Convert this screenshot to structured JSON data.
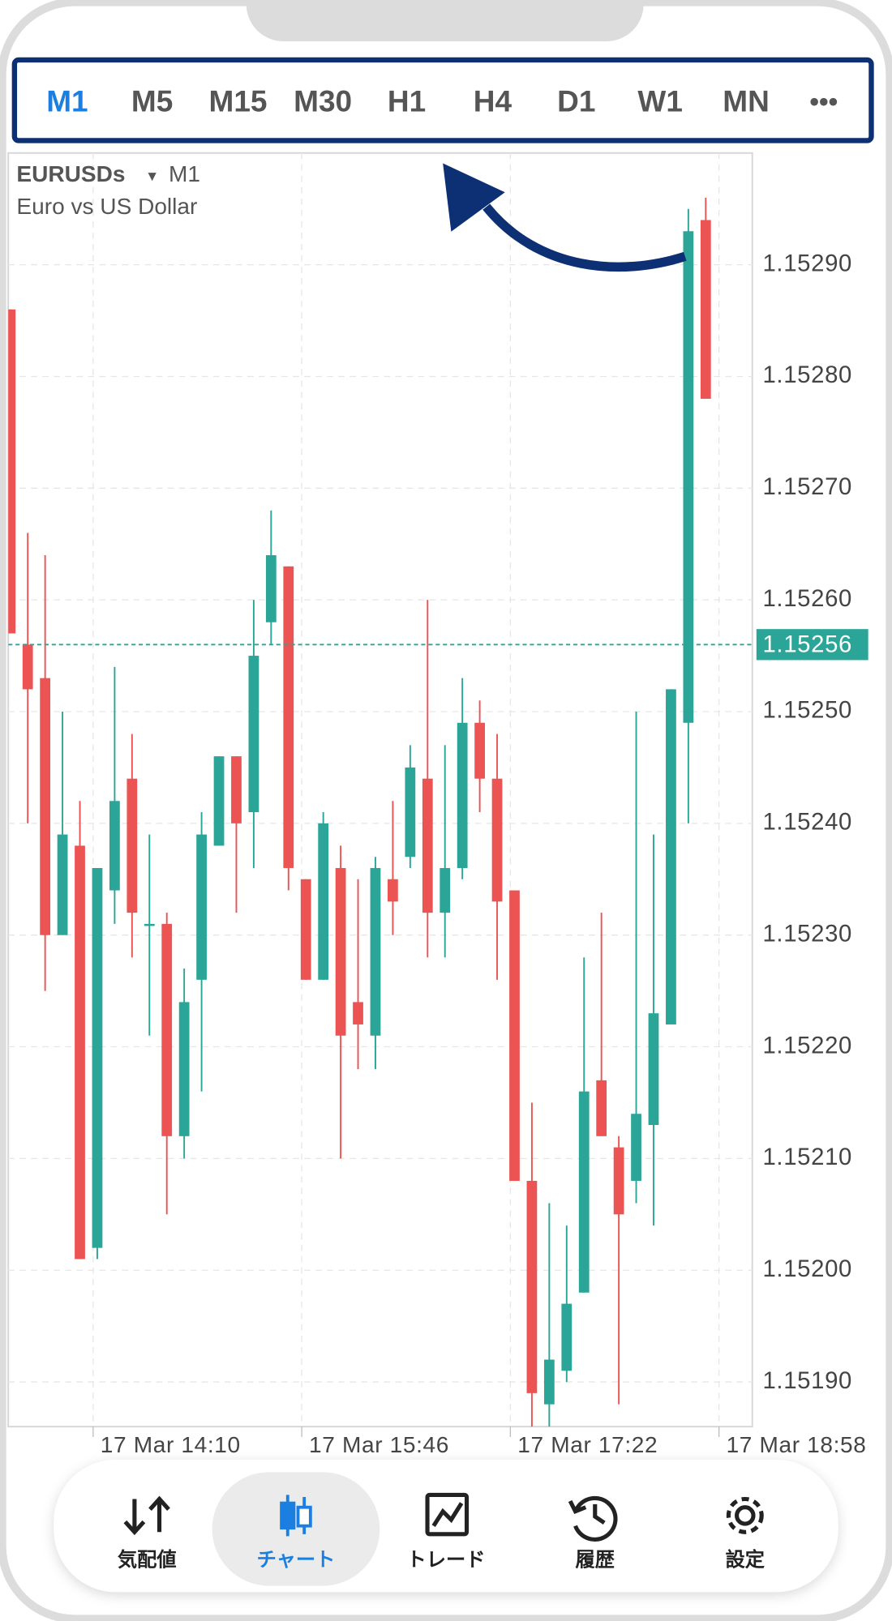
{
  "timeframes": [
    "M1",
    "M5",
    "M15",
    "M30",
    "H1",
    "H4",
    "D1",
    "W1",
    "MN"
  ],
  "more": "•••",
  "symbol": "EURUSDs",
  "dropdown": "▾",
  "timeframe": "M1",
  "description": "Euro vs US Dollar",
  "nav": [
    "気配値",
    "チャート",
    "トレード",
    "履歴",
    "設定"
  ],
  "chart_data": {
    "type": "candlestick",
    "open": [
      1.15286,
      1.15256,
      1.15253,
      1.1523,
      1.15238,
      1.15202,
      1.15234,
      1.15244,
      1.15231,
      1.15231,
      1.15212,
      1.15226,
      1.15238,
      1.15246,
      1.15241,
      1.15258,
      1.15263,
      1.15235,
      1.15226,
      1.15236,
      1.15224,
      1.15221,
      1.15235,
      1.15237,
      1.15244,
      1.15232,
      1.15236,
      1.15249,
      1.15244,
      1.15234,
      1.15208,
      1.15188,
      1.15191,
      1.15198,
      1.15217,
      1.15211,
      1.15208,
      1.15213,
      1.15222,
      1.15249,
      1.15294
    ],
    "high": [
      1.15286,
      1.15266,
      1.15264,
      1.1525,
      1.15242,
      1.15236,
      1.15254,
      1.15248,
      1.15239,
      1.15232,
      1.15227,
      1.15241,
      1.15246,
      1.15246,
      1.1526,
      1.15268,
      1.15263,
      1.15235,
      1.15241,
      1.15238,
      1.15235,
      1.15237,
      1.15242,
      1.15247,
      1.1526,
      1.15247,
      1.15253,
      1.15251,
      1.15248,
      1.15234,
      1.15215,
      1.15206,
      1.15204,
      1.15228,
      1.15232,
      1.15212,
      1.1525,
      1.15239,
      1.15252,
      1.15295,
      1.15296
    ],
    "low": [
      1.15257,
      1.1524,
      1.15225,
      1.1523,
      1.15201,
      1.15201,
      1.15231,
      1.15228,
      1.15221,
      1.15205,
      1.1521,
      1.15216,
      1.15238,
      1.15232,
      1.15236,
      1.15256,
      1.15234,
      1.15226,
      1.15226,
      1.1521,
      1.15218,
      1.15218,
      1.1523,
      1.15236,
      1.15228,
      1.15228,
      1.15235,
      1.15241,
      1.15226,
      1.15208,
      1.15186,
      1.15186,
      1.1519,
      1.15198,
      1.15212,
      1.15188,
      1.15206,
      1.15204,
      1.15222,
      1.1524,
      1.15278
    ],
    "close": [
      1.15257,
      1.15252,
      1.1523,
      1.15239,
      1.15201,
      1.15236,
      1.15242,
      1.15232,
      1.15231,
      1.15212,
      1.15224,
      1.15239,
      1.15246,
      1.1524,
      1.15255,
      1.15264,
      1.15236,
      1.15226,
      1.1524,
      1.15221,
      1.15222,
      1.15236,
      1.15233,
      1.15245,
      1.15232,
      1.15236,
      1.15249,
      1.15244,
      1.15233,
      1.15208,
      1.15189,
      1.15192,
      1.15197,
      1.15216,
      1.15212,
      1.15205,
      1.15214,
      1.15223,
      1.15252,
      1.15293,
      1.15278
    ],
    "up_color": "#2aa597",
    "down_color": "#ec5353",
    "ylim": [
      1.15186,
      1.153
    ],
    "yticks": [
      {
        "value": 1.1519,
        "label": "1.15190"
      },
      {
        "value": 1.152,
        "label": "1.15200"
      },
      {
        "value": 1.1521,
        "label": "1.15210"
      },
      {
        "value": 1.1522,
        "label": "1.15220"
      },
      {
        "value": 1.1523,
        "label": "1.15230"
      },
      {
        "value": 1.1524,
        "label": "1.15240"
      },
      {
        "value": 1.1525,
        "label": "1.15250"
      },
      {
        "value": 1.1526,
        "label": "1.15260"
      },
      {
        "value": 1.1527,
        "label": "1.15270"
      },
      {
        "value": 1.1528,
        "label": "1.15280"
      },
      {
        "value": 1.1529,
        "label": "1.15290"
      }
    ],
    "x_labels": [
      "17 Mar 14:10",
      "17 Mar 15:46",
      "17 Mar 17:22",
      "17 Mar 18:58"
    ],
    "current_price": 1.15256,
    "grid": true
  }
}
